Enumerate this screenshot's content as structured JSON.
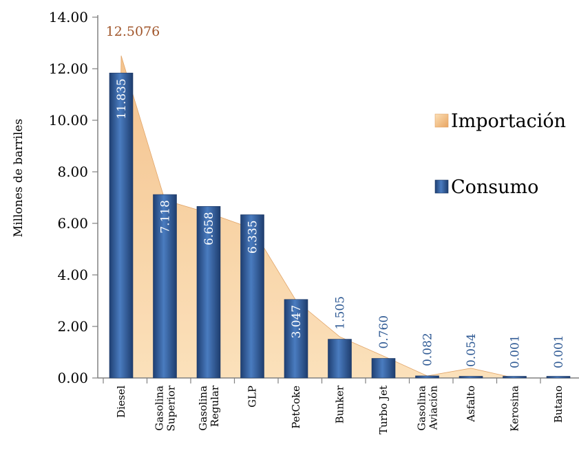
{
  "chart_data": {
    "type": "bar",
    "ylabel": "Millones de barriles",
    "ylim": [
      0,
      14
    ],
    "yticks": [
      "0.00",
      "2.00",
      "4.00",
      "6.00",
      "8.00",
      "10.00",
      "12.00",
      "14.00"
    ],
    "categories": [
      [
        "Diesel"
      ],
      [
        "Gasolina",
        "Superior"
      ],
      [
        "Gasolina",
        "Regular"
      ],
      [
        "GLP"
      ],
      [
        "PetCoke"
      ],
      [
        "Bunker"
      ],
      [
        "Turbo Jet"
      ],
      [
        "Gasolina",
        "Aviación"
      ],
      [
        "Asfalto"
      ],
      [
        "Kerosina"
      ],
      [
        "Butano"
      ]
    ],
    "series": [
      {
        "name": "Importación",
        "type": "area",
        "color": "#f7c98f",
        "values": [
          12.5076,
          6.9,
          6.4,
          5.8,
          3.0,
          1.6,
          0.85,
          0.08,
          0.38,
          0.001,
          0.001
        ],
        "peak_label": "12.5076"
      },
      {
        "name": "Consumo",
        "type": "bar",
        "color": "#2f5a94",
        "values": [
          11.835,
          7.118,
          6.658,
          6.335,
          3.047,
          1.505,
          0.76,
          0.082,
          0.054,
          0.001,
          0.001
        ],
        "labels": [
          "11.835",
          "7.118",
          "6.658",
          "6.335",
          "3.047",
          "1.505",
          "0.760",
          "0.082",
          "0.054",
          "0.001",
          "0.001"
        ]
      }
    ],
    "legend": [
      "Importación",
      "Consumo"
    ],
    "legend_position": "right"
  }
}
